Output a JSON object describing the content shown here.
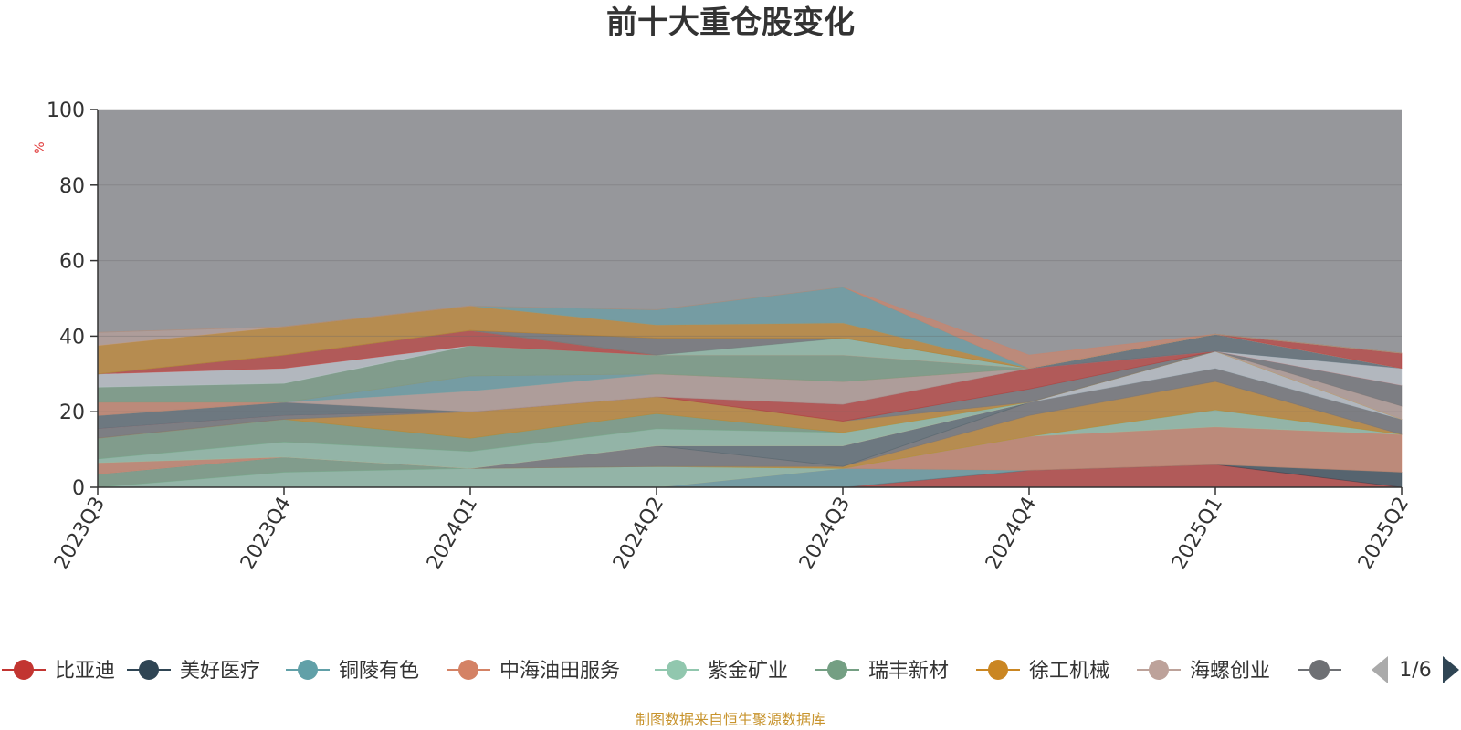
{
  "chart_data": {
    "type": "area",
    "title": "前十大重仓股变化",
    "unit_label": "%",
    "ylim": [
      0,
      100
    ],
    "y_ticks": [
      "0",
      "20",
      "40",
      "60",
      "80",
      "100"
    ],
    "categories": [
      "2023Q3",
      "2023Q4",
      "2024Q1",
      "2024Q2",
      "2024Q3",
      "2024Q4",
      "2025Q1",
      "2025Q2"
    ],
    "stacked": true,
    "background_series": {
      "values": [
        100,
        100,
        100,
        100,
        100,
        100,
        100,
        100
      ],
      "color": "#7f8085"
    },
    "series": [
      {
        "name": "比亚迪",
        "color": "#c23531",
        "values": [
          0,
          0,
          0,
          0,
          0,
          4.5,
          6,
          0
        ]
      },
      {
        "name": "美好医疗",
        "color": "#2f4554",
        "values": [
          0,
          0,
          0,
          0,
          0,
          0,
          0,
          4
        ]
      },
      {
        "name": "铜陵有色",
        "color": "#61a0a8",
        "values": [
          0,
          0,
          0,
          0,
          5,
          0,
          0,
          0
        ]
      },
      {
        "name": "中海油田服务",
        "color": "#d48265",
        "values": [
          0,
          0,
          0,
          0,
          0,
          9,
          10,
          10
        ]
      },
      {
        "name": "紫金矿业",
        "color": "#91c7ae",
        "values": [
          0,
          4,
          5,
          5.5,
          0,
          0,
          4.5,
          0
        ]
      },
      {
        "name": "瑞丰新材",
        "color": "#749f83",
        "values": [
          3.5,
          4,
          0,
          0,
          0,
          0,
          0,
          0
        ]
      },
      {
        "name": "徐工机械",
        "color": "#ca8622",
        "values": [
          0,
          0,
          0,
          0,
          0.5,
          5.5,
          7.5,
          0
        ]
      },
      {
        "name": "海螺创业",
        "color": "#bda29a",
        "values": [
          0,
          0,
          0,
          0,
          0,
          0,
          0,
          0
        ]
      },
      {
        "name": "",
        "color": "#6e7074",
        "values": [
          0,
          0,
          0,
          5.5,
          0,
          3.5,
          3.5,
          4
        ]
      },
      {
        "name": "",
        "color": "#546570",
        "values": [
          0,
          0,
          0,
          0,
          5.5,
          0,
          0,
          0
        ]
      },
      {
        "name": "",
        "color": "#c4ccd3",
        "values": [
          0,
          0,
          0,
          0,
          0,
          0,
          4.5,
          0
        ]
      },
      {
        "name": "",
        "color": "#d48265",
        "values": [
          3,
          0,
          0,
          0,
          0,
          0,
          0,
          0
        ]
      },
      {
        "name": "",
        "color": "#91c7ae",
        "values": [
          1,
          4,
          4.5,
          4.5,
          3.5,
          0,
          0,
          0
        ]
      },
      {
        "name": "",
        "color": "#749f83",
        "values": [
          5.5,
          6,
          3.5,
          4,
          0,
          0,
          0,
          0
        ]
      },
      {
        "name": "",
        "color": "#ca8622",
        "values": [
          0,
          0,
          7,
          4.5,
          3,
          0,
          0,
          0
        ]
      },
      {
        "name": "",
        "color": "#bda29a",
        "values": [
          0,
          0,
          0,
          0,
          0,
          0,
          0,
          3.5
        ]
      },
      {
        "name": "",
        "color": "#6e7074",
        "values": [
          2.5,
          1,
          0,
          0,
          0,
          3.5,
          0,
          5.5
        ]
      },
      {
        "name": "",
        "color": "#c23531",
        "values": [
          0,
          0,
          0,
          0,
          4.5,
          5.5,
          0,
          0
        ]
      },
      {
        "name": "",
        "color": "#c4ccd3",
        "values": [
          0,
          0,
          0,
          0,
          0,
          0,
          0,
          4.5
        ]
      },
      {
        "name": "",
        "color": "#546570",
        "values": [
          3.5,
          3.5,
          0,
          0,
          0,
          0,
          4.5,
          0
        ]
      },
      {
        "name": "",
        "color": "#bda29a",
        "values": [
          0,
          0,
          5.5,
          6,
          6,
          0,
          0,
          0
        ]
      },
      {
        "name": "",
        "color": "#61a0a8",
        "values": [
          0,
          0,
          4,
          0,
          0,
          0,
          0,
          0
        ]
      },
      {
        "name": "",
        "color": "#d48265",
        "values": [
          3.5,
          0,
          0,
          0,
          0,
          0,
          0,
          0
        ]
      },
      {
        "name": "",
        "color": "#749f83",
        "values": [
          4,
          5,
          8,
          5,
          7,
          0,
          0,
          0
        ]
      },
      {
        "name": "",
        "color": "#c4ccd3",
        "values": [
          3.5,
          4,
          0,
          0,
          0,
          0,
          0,
          0
        ]
      },
      {
        "name": "",
        "color": "#c23531",
        "values": [
          0,
          3.5,
          4,
          0,
          0,
          0,
          0,
          4
        ]
      },
      {
        "name": "",
        "color": "#91c7ae",
        "values": [
          0,
          0,
          0,
          0,
          4.5,
          0,
          0,
          0
        ]
      },
      {
        "name": "",
        "color": "#6e7074",
        "values": [
          0,
          0,
          0,
          4.5,
          0,
          0,
          0,
          0
        ]
      },
      {
        "name": "",
        "color": "#ca8622",
        "values": [
          7.5,
          7.5,
          6.5,
          3.5,
          4,
          0,
          0,
          0
        ]
      },
      {
        "name": "",
        "color": "#bda29a",
        "values": [
          3.5,
          0,
          0,
          0,
          0,
          0,
          0,
          0
        ]
      },
      {
        "name": "",
        "color": "#61a0a8",
        "values": [
          0,
          0,
          0,
          4,
          9.5,
          0,
          0,
          0
        ]
      },
      {
        "name": "",
        "color": "#d48265",
        "values": [
          0,
          0,
          0,
          0,
          0,
          3.5,
          0,
          0
        ]
      }
    ]
  },
  "legend": {
    "items": [
      {
        "label": "比亚迪",
        "color": "#c23531"
      },
      {
        "label": "美好医疗",
        "color": "#2f4554"
      },
      {
        "label": "铜陵有色",
        "color": "#61a0a8"
      },
      {
        "label": "中海油田服务",
        "color": "#d48265"
      },
      {
        "label": "紫金矿业",
        "color": "#91c7ae"
      },
      {
        "label": "瑞丰新材",
        "color": "#749f83"
      },
      {
        "label": "徐工机械",
        "color": "#ca8622"
      },
      {
        "label": "海螺创业",
        "color": "#bda29a"
      },
      {
        "label": "",
        "color": "#6e7074"
      }
    ],
    "page": "1/6",
    "nav_prev_color": "#aaaaaa",
    "nav_next_color": "#2f4554"
  },
  "source": "制图数据来自恒生聚源数据库"
}
